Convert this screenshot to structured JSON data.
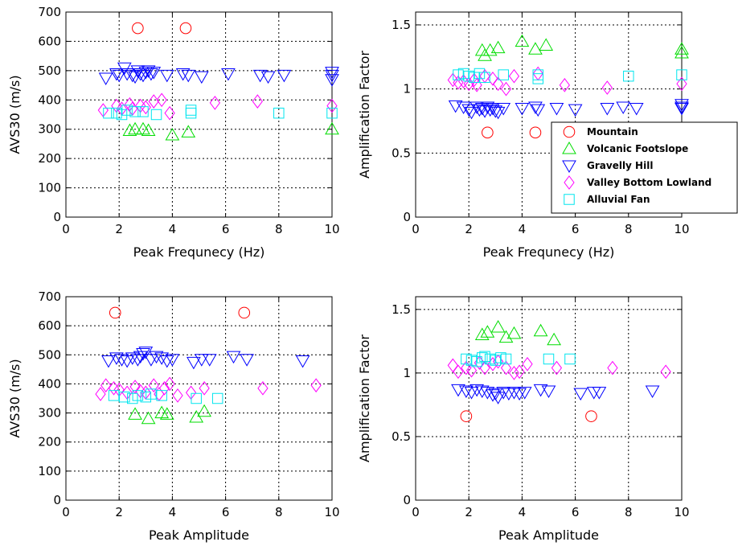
{
  "chart_data": [
    {
      "type": "scatter",
      "xlabel": "Peak Frequnecy (Hz)",
      "ylabel": "AVS30 (m/s)",
      "xlim": [
        0,
        10
      ],
      "ylim": [
        0,
        700
      ],
      "xticks": [
        "0",
        "2",
        "4",
        "6",
        "8",
        "10"
      ],
      "yticks": [
        "0",
        "100",
        "200",
        "300",
        "400",
        "500",
        "600",
        "700"
      ],
      "grid": true,
      "series": [
        {
          "key": "mountain",
          "points": [
            [
              2.7,
              645
            ],
            [
              4.5,
              645
            ]
          ]
        },
        {
          "key": "volcanic",
          "points": [
            [
              2.4,
              295
            ],
            [
              2.6,
              300
            ],
            [
              2.9,
              300
            ],
            [
              3.1,
              295
            ],
            [
              4.0,
              280
            ],
            [
              4.6,
              290
            ],
            [
              10,
              300
            ]
          ]
        },
        {
          "key": "gravelly",
          "points": [
            [
              1.5,
              475
            ],
            [
              1.9,
              490
            ],
            [
              2.0,
              485
            ],
            [
              2.2,
              510
            ],
            [
              2.3,
              490
            ],
            [
              2.5,
              485
            ],
            [
              2.6,
              480
            ],
            [
              2.7,
              500
            ],
            [
              2.8,
              490
            ],
            [
              2.9,
              485
            ],
            [
              3.0,
              495
            ],
            [
              3.1,
              500
            ],
            [
              3.2,
              490
            ],
            [
              3.3,
              495
            ],
            [
              3.8,
              485
            ],
            [
              4.4,
              490
            ],
            [
              4.6,
              485
            ],
            [
              5.1,
              480
            ],
            [
              6.1,
              490
            ],
            [
              7.3,
              485
            ],
            [
              7.6,
              480
            ],
            [
              8.2,
              485
            ],
            [
              10,
              495
            ],
            [
              10,
              485
            ],
            [
              10,
              470
            ]
          ]
        },
        {
          "key": "valley",
          "points": [
            [
              1.4,
              365
            ],
            [
              1.9,
              380
            ],
            [
              2.1,
              370
            ],
            [
              2.4,
              385
            ],
            [
              2.5,
              370
            ],
            [
              2.8,
              380
            ],
            [
              3.0,
              375
            ],
            [
              3.3,
              395
            ],
            [
              3.6,
              400
            ],
            [
              3.9,
              355
            ],
            [
              5.6,
              390
            ],
            [
              7.2,
              395
            ],
            [
              10,
              380
            ]
          ]
        },
        {
          "key": "alluvial",
          "points": [
            [
              1.6,
              355
            ],
            [
              1.9,
              355
            ],
            [
              2.1,
              350
            ],
            [
              2.3,
              365
            ],
            [
              2.6,
              360
            ],
            [
              2.9,
              360
            ],
            [
              3.4,
              350
            ],
            [
              4.7,
              355
            ],
            [
              4.7,
              365
            ],
            [
              8.0,
              355
            ],
            [
              10,
              355
            ]
          ]
        }
      ]
    },
    {
      "type": "scatter",
      "xlabel": "Peak Frequnecy (Hz)",
      "ylabel": "Amplification Factor",
      "xlim": [
        0,
        10
      ],
      "ylim": [
        0,
        1.6
      ],
      "xticks": [
        "0",
        "2",
        "4",
        "6",
        "8",
        "10"
      ],
      "yticks": [
        "0",
        "0.5",
        "1",
        "1.5"
      ],
      "yticklocs": [
        0,
        0.5,
        1,
        1.5
      ],
      "grid": true,
      "series": [
        {
          "key": "mountain",
          "points": [
            [
              2.7,
              0.66
            ],
            [
              4.5,
              0.66
            ]
          ]
        },
        {
          "key": "volcanic",
          "points": [
            [
              2.5,
              1.3
            ],
            [
              2.6,
              1.26
            ],
            [
              2.8,
              1.3
            ],
            [
              3.1,
              1.32
            ],
            [
              4.0,
              1.37
            ],
            [
              4.5,
              1.31
            ],
            [
              4.9,
              1.34
            ],
            [
              10,
              1.31
            ],
            [
              10,
              1.28
            ]
          ]
        },
        {
          "key": "gravelly",
          "points": [
            [
              1.5,
              0.87
            ],
            [
              1.8,
              0.86
            ],
            [
              2.0,
              0.84
            ],
            [
              2.1,
              0.82
            ],
            [
              2.3,
              0.86
            ],
            [
              2.4,
              0.84
            ],
            [
              2.5,
              0.85
            ],
            [
              2.6,
              0.83
            ],
            [
              2.7,
              0.86
            ],
            [
              2.8,
              0.84
            ],
            [
              2.9,
              0.85
            ],
            [
              3.0,
              0.83
            ],
            [
              3.1,
              0.82
            ],
            [
              3.3,
              0.85
            ],
            [
              4.0,
              0.85
            ],
            [
              4.5,
              0.86
            ],
            [
              4.6,
              0.84
            ],
            [
              5.3,
              0.85
            ],
            [
              6.0,
              0.84
            ],
            [
              7.2,
              0.85
            ],
            [
              7.8,
              0.86
            ],
            [
              8.3,
              0.85
            ],
            [
              10,
              0.88
            ],
            [
              10,
              0.86
            ],
            [
              10,
              0.85
            ]
          ]
        },
        {
          "key": "valley",
          "points": [
            [
              1.4,
              1.07
            ],
            [
              1.6,
              1.05
            ],
            [
              1.8,
              1.06
            ],
            [
              2.0,
              1.04
            ],
            [
              2.2,
              1.07
            ],
            [
              2.3,
              1.03
            ],
            [
              2.6,
              1.1
            ],
            [
              2.9,
              1.08
            ],
            [
              3.1,
              1.04
            ],
            [
              3.4,
              1.0
            ],
            [
              3.7,
              1.1
            ],
            [
              4.6,
              1.12
            ],
            [
              5.6,
              1.03
            ],
            [
              7.2,
              1.01
            ],
            [
              10,
              1.04
            ]
          ]
        },
        {
          "key": "alluvial",
          "points": [
            [
              1.6,
              1.11
            ],
            [
              1.8,
              1.12
            ],
            [
              2.0,
              1.1
            ],
            [
              2.2,
              1.09
            ],
            [
              2.4,
              1.12
            ],
            [
              2.6,
              1.09
            ],
            [
              3.3,
              1.11
            ],
            [
              4.6,
              1.11
            ],
            [
              4.6,
              1.08
            ],
            [
              8.0,
              1.1
            ],
            [
              10,
              1.11
            ]
          ]
        }
      ],
      "legend": {
        "position": "right",
        "entries": [
          {
            "key": "mountain",
            "label": "Mountain"
          },
          {
            "key": "volcanic",
            "label": "Volcanic Footslope"
          },
          {
            "key": "gravelly",
            "label": "Gravelly Hill"
          },
          {
            "key": "valley",
            "label": "Valley Bottom Lowland"
          },
          {
            "key": "alluvial",
            "label": "Alluvial Fan"
          }
        ]
      }
    },
    {
      "type": "scatter",
      "xlabel": "Peak Amplitude",
      "ylabel": "AVS30 (m/s)",
      "xlim": [
        0,
        10
      ],
      "ylim": [
        0,
        700
      ],
      "xticks": [
        "0",
        "2",
        "4",
        "6",
        "8",
        "10"
      ],
      "yticks": [
        "0",
        "100",
        "200",
        "300",
        "400",
        "500",
        "600",
        "700"
      ],
      "grid": true,
      "series": [
        {
          "key": "mountain",
          "points": [
            [
              1.85,
              645
            ],
            [
              6.7,
              645
            ]
          ]
        },
        {
          "key": "volcanic",
          "points": [
            [
              2.6,
              295
            ],
            [
              3.1,
              280
            ],
            [
              3.6,
              300
            ],
            [
              3.8,
              295
            ],
            [
              4.9,
              285
            ],
            [
              5.2,
              305
            ]
          ]
        },
        {
          "key": "gravelly",
          "points": [
            [
              1.6,
              480
            ],
            [
              1.9,
              490
            ],
            [
              2.1,
              485
            ],
            [
              2.3,
              480
            ],
            [
              2.5,
              490
            ],
            [
              2.7,
              485
            ],
            [
              2.8,
              495
            ],
            [
              2.9,
              505
            ],
            [
              3.0,
              510
            ],
            [
              3.2,
              485
            ],
            [
              3.4,
              495
            ],
            [
              3.6,
              490
            ],
            [
              3.8,
              480
            ],
            [
              4.0,
              485
            ],
            [
              4.8,
              475
            ],
            [
              5.1,
              485
            ],
            [
              5.4,
              485
            ],
            [
              6.3,
              495
            ],
            [
              6.8,
              485
            ],
            [
              8.9,
              480
            ]
          ]
        },
        {
          "key": "valley",
          "points": [
            [
              1.3,
              365
            ],
            [
              1.5,
              395
            ],
            [
              1.8,
              385
            ],
            [
              2.0,
              380
            ],
            [
              2.3,
              370
            ],
            [
              2.6,
              390
            ],
            [
              2.8,
              375
            ],
            [
              3.0,
              370
            ],
            [
              3.3,
              395
            ],
            [
              3.5,
              365
            ],
            [
              3.7,
              385
            ],
            [
              3.9,
              400
            ],
            [
              4.2,
              360
            ],
            [
              4.7,
              370
            ],
            [
              5.2,
              385
            ],
            [
              7.4,
              385
            ],
            [
              9.4,
              395
            ]
          ]
        },
        {
          "key": "alluvial",
          "points": [
            [
              1.8,
              360
            ],
            [
              2.2,
              355
            ],
            [
              2.5,
              350
            ],
            [
              2.7,
              360
            ],
            [
              3.0,
              355
            ],
            [
              3.2,
              365
            ],
            [
              3.6,
              360
            ],
            [
              4.9,
              350
            ],
            [
              5.7,
              350
            ]
          ]
        }
      ]
    },
    {
      "type": "scatter",
      "xlabel": "Peak Amplitude",
      "ylabel": "Amplification Factor",
      "xlim": [
        0,
        10
      ],
      "ylim": [
        0,
        1.6
      ],
      "xticks": [
        "0",
        "2",
        "4",
        "6",
        "8",
        "10"
      ],
      "yticks": [
        "0",
        "0.5",
        "1",
        "1.5"
      ],
      "yticklocs": [
        0,
        0.5,
        1,
        1.5
      ],
      "grid": true,
      "series": [
        {
          "key": "mountain",
          "points": [
            [
              1.9,
              0.66
            ],
            [
              6.6,
              0.66
            ]
          ]
        },
        {
          "key": "volcanic",
          "points": [
            [
              2.5,
              1.3
            ],
            [
              2.7,
              1.32
            ],
            [
              3.1,
              1.36
            ],
            [
              3.4,
              1.28
            ],
            [
              3.7,
              1.31
            ],
            [
              4.7,
              1.33
            ],
            [
              5.2,
              1.26
            ]
          ]
        },
        {
          "key": "gravelly",
          "points": [
            [
              1.6,
              0.87
            ],
            [
              1.9,
              0.86
            ],
            [
              2.1,
              0.85
            ],
            [
              2.3,
              0.87
            ],
            [
              2.5,
              0.86
            ],
            [
              2.7,
              0.85
            ],
            [
              2.9,
              0.83
            ],
            [
              3.0,
              0.84
            ],
            [
              3.1,
              0.81
            ],
            [
              3.3,
              0.85
            ],
            [
              3.5,
              0.84
            ],
            [
              3.7,
              0.85
            ],
            [
              3.9,
              0.84
            ],
            [
              4.1,
              0.85
            ],
            [
              4.7,
              0.87
            ],
            [
              5.0,
              0.86
            ],
            [
              6.2,
              0.84
            ],
            [
              6.7,
              0.85
            ],
            [
              6.9,
              0.85
            ],
            [
              8.9,
              0.86
            ]
          ]
        },
        {
          "key": "valley",
          "points": [
            [
              1.4,
              1.06
            ],
            [
              1.6,
              1.01
            ],
            [
              1.9,
              1.04
            ],
            [
              2.1,
              1.02
            ],
            [
              2.4,
              1.08
            ],
            [
              2.6,
              1.04
            ],
            [
              2.9,
              1.07
            ],
            [
              3.1,
              1.09
            ],
            [
              3.4,
              1.04
            ],
            [
              3.7,
              1.0
            ],
            [
              3.9,
              1.01
            ],
            [
              4.2,
              1.07
            ],
            [
              5.3,
              1.04
            ],
            [
              7.4,
              1.04
            ],
            [
              9.4,
              1.01
            ]
          ]
        },
        {
          "key": "alluvial",
          "points": [
            [
              1.9,
              1.11
            ],
            [
              2.1,
              1.1
            ],
            [
              2.3,
              1.09
            ],
            [
              2.5,
              1.12
            ],
            [
              2.6,
              1.13
            ],
            [
              2.8,
              1.11
            ],
            [
              3.0,
              1.1
            ],
            [
              3.2,
              1.12
            ],
            [
              3.4,
              1.11
            ],
            [
              5.0,
              1.11
            ],
            [
              5.8,
              1.11
            ]
          ]
        }
      ]
    }
  ],
  "styles": {
    "mountain": {
      "marker": "circle",
      "color": "#ff0000"
    },
    "volcanic": {
      "marker": "triangle-up",
      "color": "#00dd00"
    },
    "gravelly": {
      "marker": "triangle-down",
      "color": "#0000ff"
    },
    "valley": {
      "marker": "diamond",
      "color": "#ff00ff"
    },
    "alluvial": {
      "marker": "square",
      "color": "#00e5ee"
    }
  }
}
